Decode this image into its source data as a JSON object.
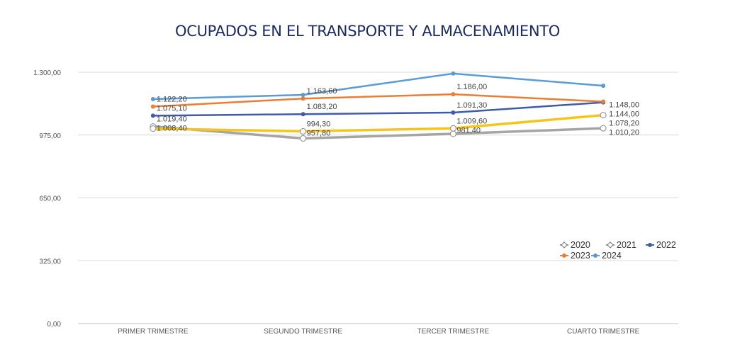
{
  "chart_data": {
    "type": "line",
    "title": "OCUPADOS EN EL TRANSPORTE Y ALMACENAMIENTO",
    "categories": [
      "PRIMER TRIMESTRE",
      "SEGUNDO TRIMESTRE",
      "TERCER TRIMESTRE",
      "CUARTO TRIMESTRE"
    ],
    "ylim": [
      0,
      1300
    ],
    "yticks": [
      "0,00",
      "325,00",
      "650,00",
      "975,00",
      "1.300,00"
    ],
    "grid": true,
    "legend": "right",
    "series": [
      {
        "name": "2020",
        "color": "#a5a5a5",
        "marker": "hollow",
        "values": [
          1019.4,
          957.8,
          981.4,
          1010.2
        ],
        "labels": [
          "1.019,40",
          "957,80",
          "981,40",
          "1.010,20"
        ]
      },
      {
        "name": "2021",
        "color": "#f5c518",
        "marker": "hollow",
        "values": [
          1008.4,
          994.3,
          1009.6,
          1078.2
        ],
        "labels": [
          "1.008,40",
          "994,30",
          "1.009,60",
          "1.078,20"
        ]
      },
      {
        "name": "2022",
        "color": "#3e5bad",
        "marker": "filled",
        "values": [
          1075.1,
          1083.2,
          1091.3,
          1144.0
        ],
        "labels": [
          "1.075,10",
          "1.083,20",
          "1.091,30",
          "1.144,00"
        ]
      },
      {
        "name": "2023",
        "color": "#ed7d31",
        "marker": "filled",
        "values": [
          1122.2,
          1163.6,
          1186.0,
          1148.0
        ],
        "labels": [
          "1.122,20",
          "1.163,60",
          "1.186,00",
          "1.148,00"
        ]
      },
      {
        "name": "2024",
        "color": "#5b9bd5",
        "marker": "filled",
        "values": [
          1161,
          1183,
          1293,
          1230
        ],
        "labels": []
      }
    ]
  }
}
